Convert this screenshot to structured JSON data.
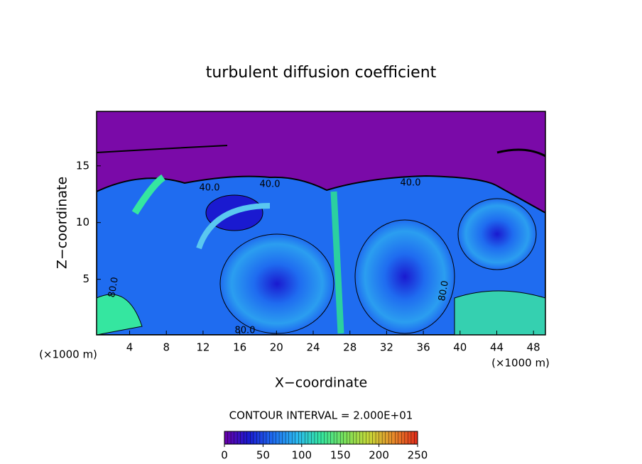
{
  "chart_data": {
    "type": "contour",
    "title": "turbulent diffusion coefficient",
    "x_label": "X−coordinate",
    "y_label": "Z−coordinate",
    "x_unit_left": "(×1000 m)",
    "x_unit_right": "(×1000 m)",
    "contour_interval": "CONTOUR INTERVAL = 2.000E+01",
    "contour_labels": [
      "40.0",
      "40.0",
      "40.0",
      "80.0",
      "80.0",
      "80.0"
    ],
    "xlim": [
      0.4,
      49.3
    ],
    "xticks": [
      4,
      8,
      12,
      16,
      20,
      24,
      28,
      32,
      36,
      40,
      44,
      48
    ],
    "ylim": [
      0.1,
      19.8
    ],
    "yticks": [
      5,
      10,
      15
    ],
    "colorbar_lim": [
      0,
      250
    ],
    "colorbar_ticks": [
      0,
      50,
      100,
      150,
      200,
      250
    ],
    "colormap": [
      "#6a00a8",
      "#1a1ad0",
      "#1f6cf0",
      "#2bb8f0",
      "#35e6a0",
      "#7be05a",
      "#c8d838",
      "#e88a2a",
      "#e02a1a"
    ]
  }
}
